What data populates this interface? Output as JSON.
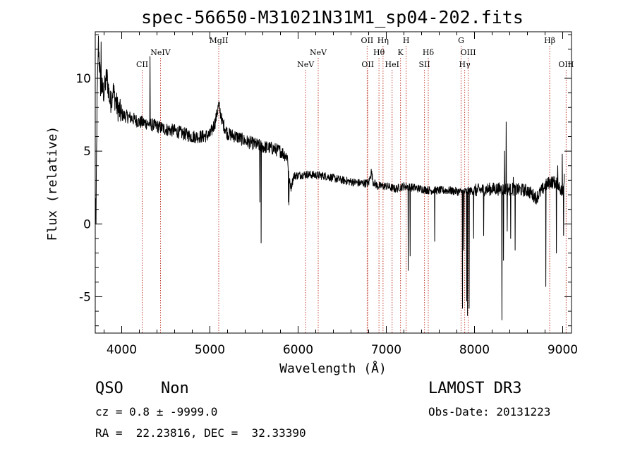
{
  "chart_data": {
    "type": "line",
    "title": "spec-56650-M31021N31M1_sp04-202.fits",
    "xlabel": "Wavelength (Å)",
    "ylabel": "Flux (relative)",
    "xlim": [
      3700,
      9100
    ],
    "ylim": [
      -7.5,
      13.2
    ],
    "xticks": [
      4000,
      5000,
      6000,
      7000,
      8000,
      9000
    ],
    "yticks": [
      -5,
      0,
      5,
      10
    ],
    "series": [
      {
        "name": "spectrum",
        "anchors": [
          [
            3700,
            0
          ],
          [
            3712,
            3
          ],
          [
            3720,
            8
          ],
          [
            3735,
            12.5
          ],
          [
            3760,
            9.5
          ],
          [
            3800,
            9
          ],
          [
            3830,
            10.2
          ],
          [
            3870,
            8.3
          ],
          [
            3900,
            9.2
          ],
          [
            3950,
            8
          ],
          [
            4000,
            7.5
          ],
          [
            4100,
            7.3
          ],
          [
            4200,
            7.0
          ],
          [
            4300,
            6.9
          ],
          [
            4400,
            6.7
          ],
          [
            4500,
            6.5
          ],
          [
            4600,
            6.4
          ],
          [
            4700,
            6.2
          ],
          [
            4800,
            6.0
          ],
          [
            4900,
            6.0
          ],
          [
            5000,
            6.1
          ],
          [
            5060,
            7.0
          ],
          [
            5100,
            8.2
          ],
          [
            5140,
            7.0
          ],
          [
            5200,
            6.2
          ],
          [
            5300,
            6.0
          ],
          [
            5400,
            5.7
          ],
          [
            5500,
            5.5
          ],
          [
            5600,
            5.3
          ],
          [
            5700,
            5.2
          ],
          [
            5800,
            5.0
          ],
          [
            5880,
            4.6
          ],
          [
            5900,
            3.0
          ],
          [
            5920,
            2.5
          ],
          [
            5950,
            3.3
          ],
          [
            6100,
            3.4
          ],
          [
            6300,
            3.3
          ],
          [
            6500,
            3.0
          ],
          [
            6700,
            2.8
          ],
          [
            6800,
            2.8
          ],
          [
            6830,
            3.6
          ],
          [
            6850,
            2.9
          ],
          [
            6900,
            2.6
          ],
          [
            7000,
            2.6
          ],
          [
            7100,
            2.4
          ],
          [
            7200,
            2.6
          ],
          [
            7300,
            2.5
          ],
          [
            7400,
            2.4
          ],
          [
            7500,
            2.3
          ],
          [
            7700,
            2.3
          ],
          [
            7850,
            2.2
          ],
          [
            8000,
            2.3
          ],
          [
            8200,
            2.4
          ],
          [
            8400,
            2.4
          ],
          [
            8600,
            2.3
          ],
          [
            8700,
            1.8
          ],
          [
            8800,
            2.6
          ],
          [
            8860,
            2.9
          ],
          [
            8950,
            2.8
          ],
          [
            9000,
            2.0
          ],
          [
            9020,
            3.5
          ]
        ],
        "spikes": [
          [
            3710,
            0
          ],
          [
            3730,
            11
          ],
          [
            3765,
            12.5
          ],
          [
            4320,
            11.5
          ],
          [
            5565,
            1.5
          ],
          [
            5580,
            -1.3
          ],
          [
            5890,
            1.5
          ],
          [
            5895,
            1.3
          ],
          [
            7250,
            -3.2
          ],
          [
            7270,
            -2.2
          ],
          [
            7550,
            -1.2
          ],
          [
            7865,
            -5.8
          ],
          [
            7880,
            -1.8
          ],
          [
            7912,
            -5.3
          ],
          [
            7920,
            -6.3
          ],
          [
            7940,
            -5.8
          ],
          [
            7990,
            -1.0
          ],
          [
            8105,
            -0.8
          ],
          [
            8310,
            -6.6
          ],
          [
            8330,
            -2.5
          ],
          [
            8340,
            5.0
          ],
          [
            8360,
            7.0
          ],
          [
            8370,
            -0.5
          ],
          [
            8410,
            -1.0
          ],
          [
            8440,
            3.2
          ],
          [
            8460,
            -1.8
          ],
          [
            8810,
            -4.3
          ],
          [
            8930,
            -2.0
          ],
          [
            8945,
            4.0
          ],
          [
            8995,
            4.8
          ],
          [
            9010,
            -0.8
          ]
        ]
      }
    ],
    "lines": [
      {
        "label": "CII",
        "x": 4232,
        "row": 2
      },
      {
        "label": "NeIV",
        "x": 4440,
        "row": 1
      },
      {
        "label": "MgII",
        "x": 5100,
        "row": 0
      },
      {
        "label": "NeV",
        "x": 6085,
        "row": 2
      },
      {
        "label": "NeV",
        "x": 6228,
        "row": 1
      },
      {
        "label": "OII",
        "x": 6783,
        "row": 0
      },
      {
        "label": "OII",
        "x": 6790,
        "row": 2
      },
      {
        "label": "Hθ",
        "x": 6917,
        "row": 1
      },
      {
        "label": "Hη",
        "x": 6963,
        "row": 0
      },
      {
        "label": "HeI",
        "x": 7066,
        "row": 2
      },
      {
        "label": "K",
        "x": 7161,
        "row": 1
      },
      {
        "label": "H",
        "x": 7225,
        "row": 0
      },
      {
        "label": "SII",
        "x": 7433,
        "row": 2
      },
      {
        "label": "Hδ",
        "x": 7476,
        "row": 1
      },
      {
        "label": "G",
        "x": 7848,
        "row": 0
      },
      {
        "label": "Hγ",
        "x": 7889,
        "row": 2
      },
      {
        "label": "OIII",
        "x": 7929,
        "row": 1
      },
      {
        "label": "Hβ",
        "x": 8853,
        "row": 0
      },
      {
        "label": "OIII",
        "x": 9039,
        "row": 2
      }
    ]
  },
  "info": {
    "class": "QSO",
    "subclass": "Non",
    "survey": "LAMOST DR3",
    "cz": "cz = 0.8 ± -9999.0",
    "obs_date": "Obs-Date: 20131223",
    "coords": "RA =  22.23816, DEC =  32.33390"
  }
}
